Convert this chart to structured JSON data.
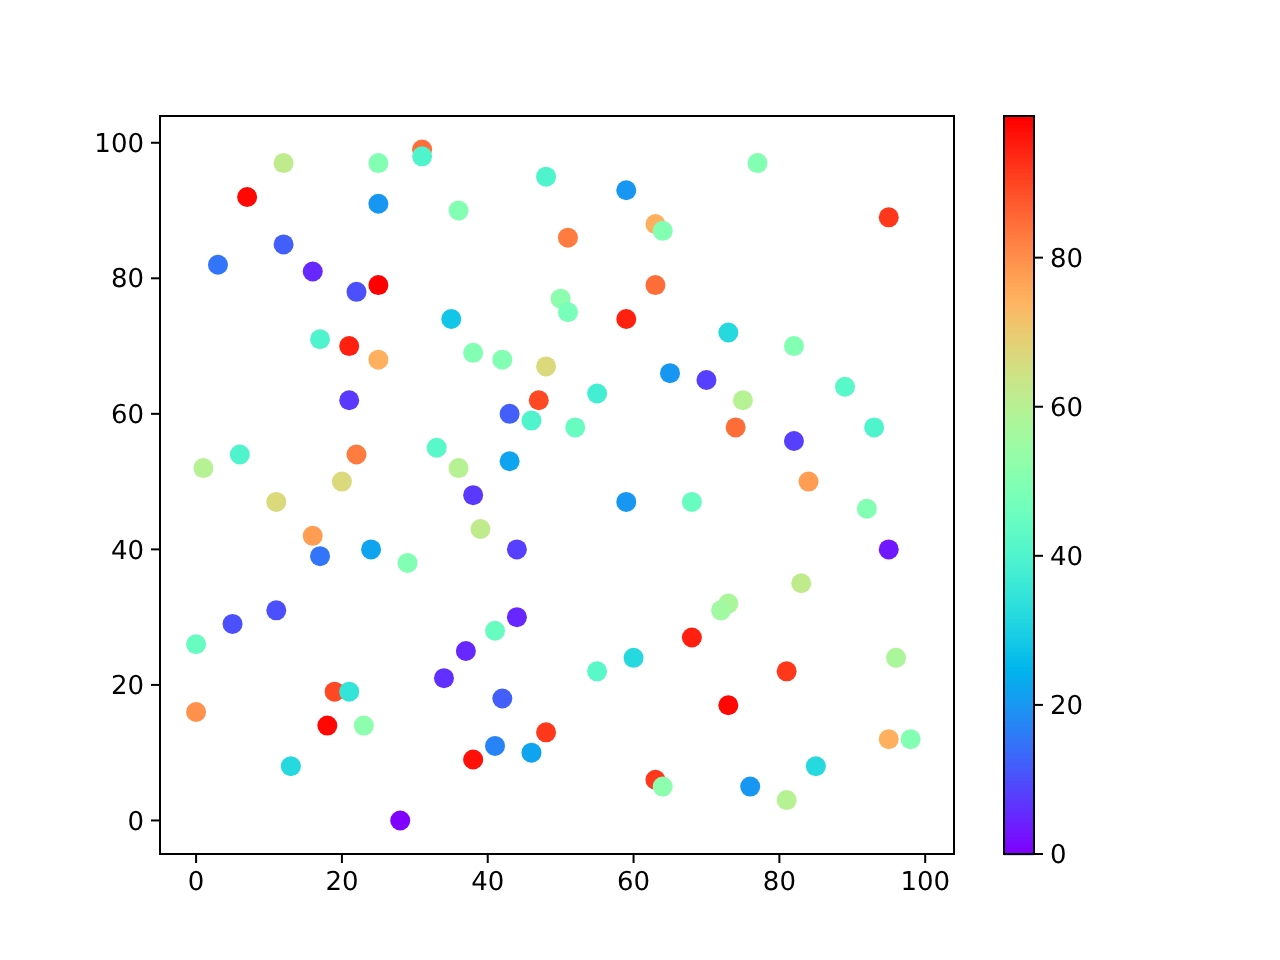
{
  "chart_data": {
    "type": "scatter",
    "marker": "circle",
    "x": [
      12,
      25,
      31,
      31,
      48,
      7,
      25,
      36,
      51,
      12,
      3,
      16,
      22,
      25,
      35,
      17,
      21,
      25,
      38,
      42,
      48,
      50,
      51,
      21,
      43,
      47,
      46,
      1,
      6,
      22,
      33,
      36,
      43,
      20,
      38,
      77,
      59,
      95,
      63,
      64,
      63,
      59,
      73,
      82,
      65,
      70,
      89,
      55,
      75,
      52,
      74,
      82,
      93,
      84,
      11,
      39,
      44,
      16,
      17,
      24,
      29,
      5,
      11,
      0,
      44,
      41,
      37,
      34,
      42,
      19,
      21,
      0,
      18,
      23,
      48,
      41,
      46,
      38,
      13,
      28,
      59,
      68,
      92,
      95,
      83,
      73,
      72,
      68,
      60,
      55,
      96,
      81,
      73,
      95,
      98,
      85,
      63,
      64,
      76,
      81
    ],
    "values": [
      97,
      97,
      99,
      98,
      95,
      92,
      91,
      90,
      86,
      85,
      82,
      81,
      78,
      79,
      74,
      71,
      70,
      68,
      69,
      68,
      67,
      77,
      75,
      62,
      60,
      62,
      59,
      52,
      54,
      54,
      55,
      52,
      53,
      50,
      48,
      97,
      93,
      89,
      88,
      87,
      79,
      74,
      72,
      70,
      66,
      65,
      64,
      63,
      62,
      58,
      58,
      56,
      58,
      50,
      47,
      43,
      40,
      42,
      39,
      40,
      38,
      29,
      31,
      26,
      30,
      28,
      25,
      21,
      18,
      19,
      19,
      16,
      14,
      14,
      13,
      11,
      10,
      9,
      8,
      0,
      47,
      47,
      46,
      40,
      35,
      32,
      31,
      27,
      24,
      22,
      24,
      22,
      17,
      12,
      12,
      8,
      6,
      5,
      5,
      3
    ],
    "cvalues": [
      62,
      50,
      85,
      40,
      40,
      98,
      20,
      50,
      83,
      12,
      15,
      5,
      10,
      99,
      28,
      40,
      95,
      75,
      50,
      50,
      67,
      52,
      48,
      7,
      12,
      90,
      40,
      60,
      40,
      83,
      42,
      60,
      22,
      67,
      7,
      50,
      20,
      92,
      75,
      50,
      85,
      95,
      32,
      50,
      20,
      8,
      42,
      38,
      60,
      45,
      85,
      8,
      40,
      78,
      67,
      62,
      8,
      78,
      15,
      22,
      50,
      10,
      10,
      45,
      5,
      45,
      5,
      6,
      12,
      90,
      35,
      80,
      98,
      52,
      92,
      17,
      22,
      97,
      32,
      0,
      20,
      45,
      50,
      3,
      62,
      58,
      56,
      95,
      32,
      42,
      58,
      92,
      98,
      75,
      50,
      32,
      92,
      52,
      20,
      60
    ],
    "xlim": [
      -4.95,
      103.95
    ],
    "ylim": [
      -4.95,
      103.95
    ],
    "xticks": [
      0,
      20,
      40,
      60,
      80,
      100
    ],
    "yticks": [
      0,
      20,
      40,
      60,
      80,
      100
    ],
    "clim": [
      0,
      99
    ],
    "cticks": [
      0,
      20,
      40,
      60,
      80
    ]
  }
}
